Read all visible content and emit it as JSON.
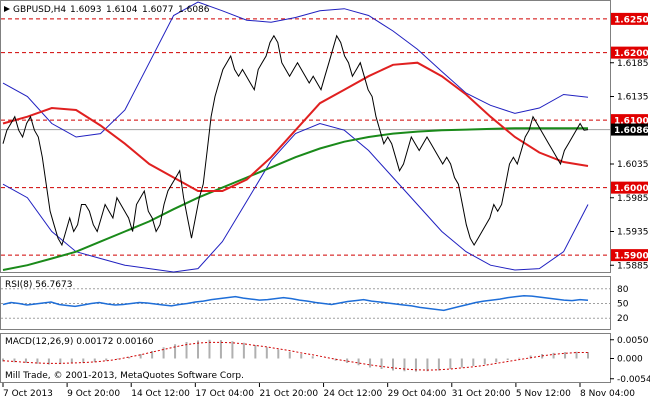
{
  "chart_data": {
    "type": "line",
    "title": "GBPUSD,H4",
    "ohlc_header": [
      "1.6093",
      "1.6104",
      "1.6077",
      "1.6086"
    ],
    "current_price": 1.6086,
    "current_price_label": "1.6086",
    "price_axis": {
      "ylim": [
        1.5875,
        1.6275
      ],
      "ticks": [
        1.6185,
        1.6135,
        1.6035,
        1.5985,
        1.5935,
        1.5885
      ],
      "tick_labels": [
        "1.6185",
        "1.6135",
        "1.6035",
        "1.5985",
        "1.5935",
        "1.5885"
      ]
    },
    "levels": [
      {
        "value": 1.625,
        "label": "1.6250"
      },
      {
        "value": 1.62,
        "label": "1.6200"
      },
      {
        "value": 1.61,
        "label": "1.6100"
      },
      {
        "value": 1.6,
        "label": "1.6000"
      },
      {
        "value": 1.59,
        "label": "1.5900"
      }
    ],
    "x_labels": [
      "7 Oct 2013",
      "9 Oct 20:00",
      "14 Oct 12:00",
      "17 Oct 04:00",
      "21 Oct 20:00",
      "24 Oct 12:00",
      "29 Oct 04:00",
      "31 Oct 20:00",
      "5 Nov 12:00",
      "8 Nov 04:00"
    ],
    "close_series": [
      1.6065,
      1.6085,
      1.6095,
      1.6105,
      1.6085,
      1.6075,
      1.6095,
      1.6105,
      1.6085,
      1.6075,
      1.6045,
      1.6005,
      1.5965,
      1.5945,
      1.5925,
      1.5915,
      1.5935,
      1.5955,
      1.5935,
      1.5945,
      1.5975,
      1.5975,
      1.5965,
      1.5945,
      1.5935,
      1.5955,
      1.5975,
      1.5965,
      1.5955,
      1.5985,
      1.5975,
      1.5965,
      1.5955,
      1.5935,
      1.5975,
      1.5985,
      1.5995,
      1.5965,
      1.5955,
      1.5935,
      1.5945,
      1.5975,
      1.5995,
      1.6005,
      1.6015,
      1.6025,
      1.5985,
      1.5955,
      1.5925,
      1.5955,
      1.5985,
      1.6005,
      1.6055,
      1.6105,
      1.6135,
      1.6155,
      1.6175,
      1.6185,
      1.6195,
      1.6175,
      1.6165,
      1.6175,
      1.6165,
      1.6155,
      1.6145,
      1.6175,
      1.6185,
      1.6195,
      1.6215,
      1.6225,
      1.6215,
      1.6185,
      1.6175,
      1.6165,
      1.6175,
      1.6185,
      1.6175,
      1.6165,
      1.6155,
      1.6165,
      1.6155,
      1.6145,
      1.6165,
      1.6185,
      1.6205,
      1.6225,
      1.6215,
      1.6195,
      1.6185,
      1.6165,
      1.6175,
      1.6185,
      1.6165,
      1.6145,
      1.6135,
      1.6105,
      1.6085,
      1.6065,
      1.6075,
      1.6065,
      1.6045,
      1.6025,
      1.6035,
      1.6055,
      1.6075,
      1.6065,
      1.6055,
      1.6065,
      1.6075,
      1.6065,
      1.6055,
      1.6045,
      1.6035,
      1.6045,
      1.6035,
      1.6015,
      1.6005,
      1.5975,
      1.5945,
      1.5925,
      1.5915,
      1.5925,
      1.5935,
      1.5945,
      1.5955,
      1.5975,
      1.5965,
      1.5975,
      1.6005,
      1.6035,
      1.6045,
      1.6035,
      1.6055,
      1.6075,
      1.6085,
      1.6105,
      1.6095,
      1.6085,
      1.6075,
      1.6065,
      1.6055,
      1.6045,
      1.6035,
      1.6055,
      1.6065,
      1.6075,
      1.6085,
      1.6095,
      1.6085,
      1.6086
    ],
    "ma_red": [
      1.6095,
      1.6105,
      1.6118,
      1.6115,
      1.6092,
      1.6065,
      1.6035,
      1.6015,
      1.5995,
      1.5995,
      1.6012,
      1.6045,
      1.6085,
      1.6125,
      1.6145,
      1.6165,
      1.6182,
      1.6185,
      1.6165,
      1.6138,
      1.6105,
      1.6075,
      1.6052,
      1.6038,
      1.6032
    ],
    "ma_green": [
      1.5878,
      1.5885,
      1.5895,
      1.5905,
      1.592,
      1.5935,
      1.595,
      1.5968,
      1.5985,
      1.6,
      1.6015,
      1.603,
      1.6045,
      1.6058,
      1.6068,
      1.6075,
      1.608,
      1.6083,
      1.6085,
      1.6086,
      1.6087,
      1.6088,
      1.6088,
      1.6088,
      1.6088
    ],
    "bb_upper": [
      1.6155,
      1.6135,
      1.6095,
      1.6075,
      1.608,
      1.6115,
      1.6185,
      1.6255,
      1.6275,
      1.6262,
      1.6248,
      1.6245,
      1.6252,
      1.6262,
      1.6265,
      1.6255,
      1.6232,
      1.6205,
      1.6172,
      1.614,
      1.6122,
      1.611,
      1.6118,
      1.6138,
      1.6134
    ],
    "bb_lower": [
      1.6005,
      1.5985,
      1.5935,
      1.5905,
      1.5895,
      1.5885,
      1.588,
      1.5875,
      1.588,
      1.592,
      1.598,
      1.604,
      1.608,
      1.6095,
      1.6085,
      1.6055,
      1.6015,
      1.5975,
      1.5935,
      1.5905,
      1.5885,
      1.5878,
      1.588,
      1.5905,
      1.5975
    ],
    "rsi": {
      "label": "RSI(8) 56.7673",
      "ylim": [
        0,
        100
      ],
      "levels": [
        80,
        50,
        20
      ],
      "level_labels": [
        "80",
        "50",
        "20"
      ],
      "values": [
        48,
        52,
        50,
        47,
        49,
        51,
        53,
        48,
        46,
        44,
        47,
        50,
        52,
        49,
        47,
        48,
        50,
        52,
        51,
        49,
        47,
        45,
        48,
        50,
        53,
        55,
        58,
        60,
        62,
        64,
        61,
        59,
        57,
        58,
        60,
        62,
        60,
        57,
        55,
        52,
        50,
        48,
        51,
        54,
        56,
        58,
        55,
        53,
        51,
        49,
        47,
        45,
        42,
        40,
        38,
        36,
        40,
        44,
        48,
        52,
        55,
        57,
        59,
        62,
        64,
        66,
        65,
        63,
        61,
        59,
        57,
        56,
        58,
        56.7673
      ]
    },
    "macd": {
      "label": "MACD(12,26,9) 0.00172 0.00160",
      "ylim": [
        -0.006,
        0.006
      ],
      "tick_labels": [
        "0.0050",
        "0.000",
        "-0.00540"
      ],
      "histogram": [
        -0.0008,
        -0.001,
        -0.0012,
        -0.0014,
        -0.0016,
        -0.0015,
        -0.0013,
        -0.0012,
        -0.001,
        -0.0006,
        -0.0002,
        0.0004,
        0.0012,
        0.002,
        0.003,
        0.0038,
        0.0044,
        0.0048,
        0.005,
        0.0049,
        0.0046,
        0.0042,
        0.0036,
        0.003,
        0.0024,
        0.0018,
        0.0012,
        0.0006,
        0.0,
        -0.0006,
        -0.0012,
        -0.0018,
        -0.0024,
        -0.0028,
        -0.0032,
        -0.0034,
        -0.0035,
        -0.0034,
        -0.0032,
        -0.0028,
        -0.0024,
        -0.002,
        -0.0016,
        -0.001,
        -0.0004,
        0.0002,
        0.0008,
        0.0012,
        0.0015,
        0.0017,
        0.0018,
        0.0017
      ],
      "signal": [
        -0.0006,
        -0.0008,
        -0.001,
        -0.0012,
        -0.0013,
        -0.0013,
        -0.0012,
        -0.0011,
        -0.0009,
        -0.0006,
        -0.0002,
        0.0004,
        0.001,
        0.0017,
        0.0024,
        0.0031,
        0.0037,
        0.0041,
        0.0043,
        0.0043,
        0.0042,
        0.0039,
        0.0035,
        0.0031,
        0.0026,
        0.0021,
        0.0015,
        0.001,
        0.0004,
        -0.0002,
        -0.0007,
        -0.0012,
        -0.0017,
        -0.0021,
        -0.0025,
        -0.0028,
        -0.003,
        -0.0031,
        -0.003,
        -0.0028,
        -0.0025,
        -0.0022,
        -0.0018,
        -0.0013,
        -0.0008,
        -0.0003,
        0.0002,
        0.0007,
        0.0011,
        0.0014,
        0.0016,
        0.0016
      ]
    },
    "copyright": "Mill Trade, © 2001-2013, MetaQuotes Software Corp.",
    "colors": {
      "price": "#000000",
      "ma_red": "#e02020",
      "ma_green": "#1a8a1a",
      "bollinger": "#2020c0",
      "level_line": "#d00000",
      "level_badge": "#e00000",
      "current_badge": "#000000",
      "rsi_line": "#1e6ed8",
      "macd_hist": "#b0b0b0",
      "macd_signal": "#d00000"
    }
  }
}
